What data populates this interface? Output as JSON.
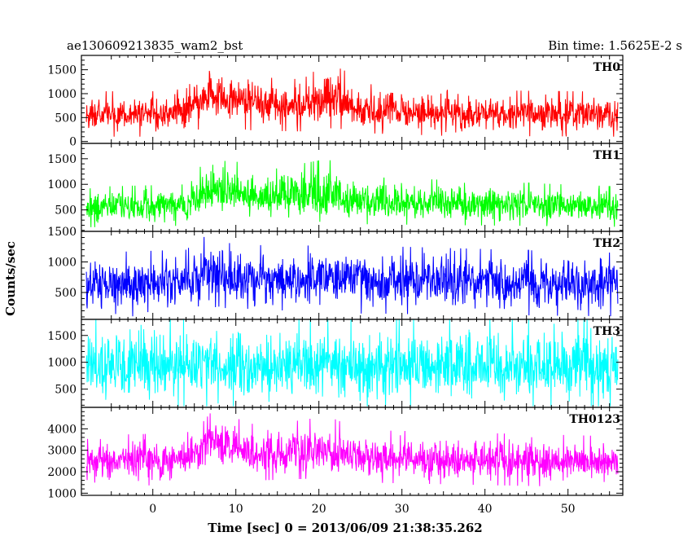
{
  "chart_data": {
    "type": "line",
    "title_left": "ae130609213835_wam2_bst",
    "title_right": "Bin time: 1.5625E-2 s",
    "xlabel": "Time [sec] 0 = 2013/06/09 21:38:35.262",
    "ylabel": "Counts/sec",
    "xlim": [
      -8.6,
      56.6
    ],
    "x_ticks": [
      0,
      10,
      20,
      30,
      40,
      50
    ],
    "x_tick_labels": [
      "0",
      "10",
      "20",
      "30",
      "40",
      "50"
    ],
    "x_data_range": [
      -8.0,
      56.0
    ],
    "grid": false,
    "panels": [
      {
        "name": "TH0",
        "color": "#ff0000",
        "ylim": [
          -40,
          1800
        ],
        "y_ticks": [
          0,
          500,
          1000,
          1500
        ],
        "y_tick_labels": [
          "0",
          "500",
          "1000",
          "1500"
        ],
        "profile": [
          [
            -8,
            100,
            560,
            1050
          ],
          [
            0,
            100,
            560,
            1050
          ],
          [
            4,
            130,
            600,
            1100
          ],
          [
            5.5,
            250,
            800,
            1450
          ],
          [
            7,
            380,
            950,
            1800
          ],
          [
            9,
            300,
            880,
            1600
          ],
          [
            12,
            230,
            780,
            1350
          ],
          [
            18,
            210,
            760,
            1300
          ],
          [
            21,
            280,
            850,
            1650
          ],
          [
            23.5,
            250,
            800,
            1450
          ],
          [
            26,
            170,
            660,
            1200
          ],
          [
            35,
            120,
            580,
            1080
          ],
          [
            56,
            100,
            540,
            1040
          ]
        ]
      },
      {
        "name": "TH1",
        "color": "#00ff00",
        "ylim": [
          80,
          1800
        ],
        "y_ticks": [
          500,
          1000,
          1500
        ],
        "y_tick_labels": [
          "500",
          "1000",
          "1500"
        ],
        "profile": [
          [
            -8,
            160,
            560,
            950
          ],
          [
            4,
            190,
            600,
            1000
          ],
          [
            6,
            300,
            800,
            1400
          ],
          [
            7.5,
            400,
            900,
            1780
          ],
          [
            10,
            310,
            800,
            1450
          ],
          [
            13,
            250,
            700,
            1250
          ],
          [
            21,
            270,
            740,
            1500
          ],
          [
            25,
            220,
            650,
            1150
          ],
          [
            56,
            170,
            570,
            960
          ]
        ]
      },
      {
        "name": "TH2",
        "color": "#0000ff",
        "ylim": [
          60,
          1500
        ],
        "y_ticks": [
          500,
          1000,
          1500
        ],
        "y_tick_labels": [
          "500",
          "1000",
          "1500"
        ],
        "profile": [
          [
            -8,
            100,
            620,
            1150
          ],
          [
            4,
            120,
            660,
            1200
          ],
          [
            6,
            230,
            800,
            1400
          ],
          [
            8,
            270,
            840,
            1500
          ],
          [
            10,
            200,
            760,
            1350
          ],
          [
            14,
            150,
            700,
            1250
          ],
          [
            22,
            160,
            710,
            1280
          ],
          [
            56,
            110,
            630,
            1150
          ]
        ]
      },
      {
        "name": "TH3",
        "color": "#00ffff",
        "ylim": [
          160,
          1800
        ],
        "y_ticks": [
          500,
          1000,
          1500
        ],
        "y_tick_labels": [
          "500",
          "1000",
          "1500"
        ],
        "profile": [
          [
            -8,
            180,
            920,
            1800
          ],
          [
            56,
            180,
            920,
            1800
          ]
        ]
      },
      {
        "name": "TH0123",
        "color": "#ff00ff",
        "ylim": [
          900,
          5000
        ],
        "y_ticks": [
          1000,
          2000,
          3000,
          4000
        ],
        "y_tick_labels": [
          "1000",
          "2000",
          "3000",
          "4000"
        ],
        "profile": [
          [
            -8,
            1300,
            2450,
            3700
          ],
          [
            4,
            1400,
            2550,
            3800
          ],
          [
            6,
            1900,
            3100,
            4300
          ],
          [
            7.5,
            2200,
            3400,
            5000
          ],
          [
            10,
            1900,
            3050,
            4500
          ],
          [
            13,
            1600,
            2800,
            4100
          ],
          [
            21,
            1700,
            2900,
            4600
          ],
          [
            25,
            1500,
            2650,
            3950
          ],
          [
            56,
            1250,
            2400,
            3650
          ]
        ]
      }
    ]
  }
}
